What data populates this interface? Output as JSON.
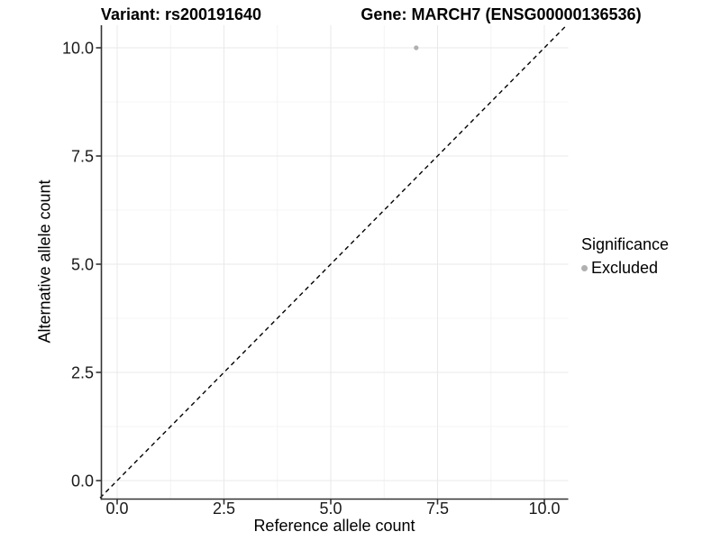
{
  "figure": {
    "titles": {
      "variant": "Variant: rs200191640",
      "gene": "Gene: MARCH7 (ENSG00000136536)"
    }
  },
  "chart_data": {
    "type": "scatter",
    "title": "Variant: rs200191640   Gene: MARCH7 (ENSG00000136536)",
    "xlabel": "Reference allele count",
    "ylabel": "Alternative allele count",
    "xlim": [
      -0.4,
      10.55
    ],
    "ylim": [
      -0.43,
      10.52
    ],
    "xticks": {
      "values": [
        0,
        2.5,
        5,
        7.5,
        10
      ],
      "labels": [
        "0.0",
        "2.5",
        "5.0",
        "7.5",
        "10.0"
      ]
    },
    "yticks": {
      "values": [
        0,
        2.5,
        5,
        7.5,
        10
      ],
      "labels": [
        "0.0",
        "2.5",
        "5.0",
        "7.5",
        "10.0"
      ]
    },
    "grid": {
      "major_color": "#e9e9e9",
      "minor_color": "#f4f4f4",
      "minor_at_midpoints": true
    },
    "series": [
      {
        "name": "Excluded",
        "color": "#b0b0b0",
        "points": [
          {
            "x": 7,
            "y": 10
          }
        ]
      }
    ],
    "reference_line": {
      "kind": "identity",
      "style": "dashed",
      "color": "#000000"
    },
    "legend": {
      "position": "right",
      "title": "Significance",
      "items": [
        {
          "label": "Excluded",
          "color": "#b0b0b0"
        }
      ]
    },
    "colors": {
      "axis_line": "#333333",
      "tick_text": "#1a1a1a"
    }
  }
}
